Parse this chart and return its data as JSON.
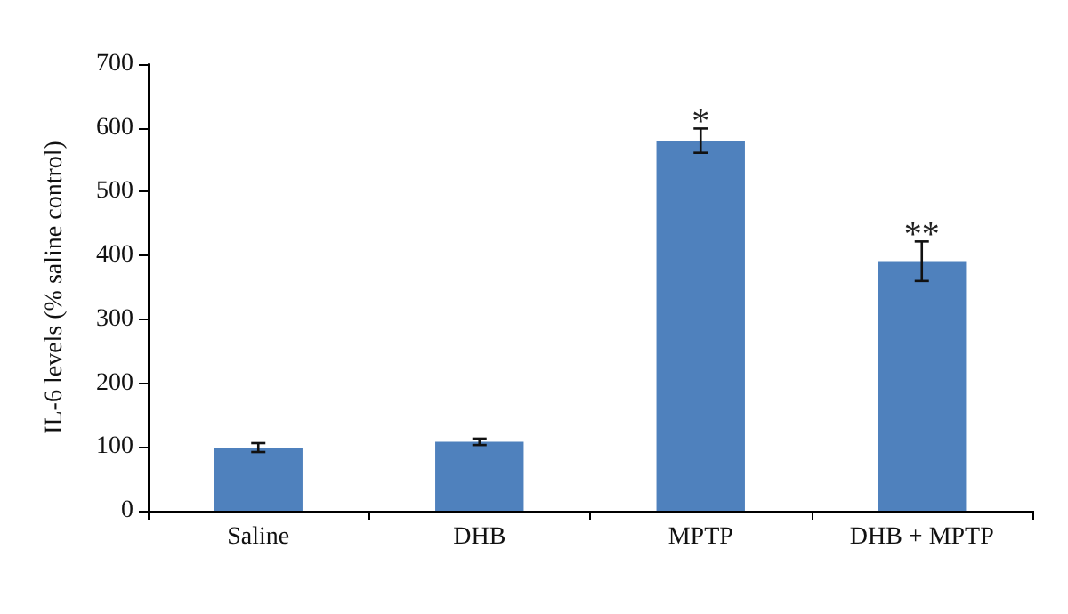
{
  "chart_data": {
    "type": "bar",
    "ylabel": "IL-6 levels (% saline control)",
    "categories": [
      "Saline",
      "DHB",
      "MPTP",
      "DHB + MPTP"
    ],
    "values": [
      99,
      108,
      580,
      391
    ],
    "errors": [
      7,
      5,
      19,
      31
    ],
    "color": "#4f81bd",
    "ylim": [
      0,
      700
    ],
    "yticks": [
      0,
      100,
      200,
      300,
      400,
      500,
      600,
      700
    ],
    "grid": false,
    "annotations": [
      {
        "text": "*",
        "x": "MPTP",
        "y": 610
      },
      {
        "text": "**",
        "x": "DHB + MPTP",
        "y": 432
      }
    ]
  }
}
